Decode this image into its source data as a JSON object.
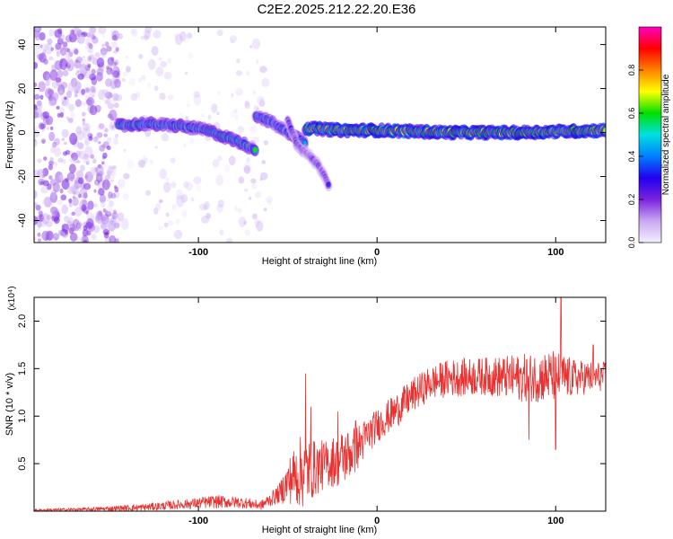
{
  "title": "C2E2.2025.212.22.20.E36",
  "chart_data": [
    {
      "type": "heatmap",
      "xlabel": "Height of straight line (km)",
      "ylabel": "Frequency (Hz)",
      "xlim": [
        -192,
        128
      ],
      "ylim": [
        -50,
        48
      ],
      "x_ticks": [
        -100,
        0,
        100
      ],
      "x_tick_labels": [
        "-100",
        "0",
        "100"
      ],
      "y_ticks": [
        -40,
        -20,
        0,
        20,
        40
      ],
      "y_tick_labels": [
        "-40",
        "-20",
        "0",
        "20",
        "40"
      ],
      "colorbar": {
        "label": "Normalized spectral amplitude",
        "range": [
          0,
          1
        ],
        "ticks": [
          0.0,
          0.2,
          0.4,
          0.6,
          0.8
        ],
        "tick_labels": [
          "0.0",
          "0.2",
          "0.4",
          "0.6",
          "0.8"
        ],
        "colormap": [
          "#f5f0ff",
          "#c9a8f2",
          "#7a22e0",
          "#2200ee",
          "#0080ff",
          "#00e0e0",
          "#00e000",
          "#ffff00",
          "#ff8000",
          "#ff0000",
          "#ff00c0"
        ]
      },
      "features": [
        {
          "name": "noise_region",
          "x_range": [
            -192,
            -145
          ],
          "freq_range": [
            -50,
            48
          ],
          "amplitude": 0.1
        },
        {
          "name": "sparse_noise",
          "x_range": [
            -145,
            -60
          ],
          "freq_range": [
            -50,
            48
          ],
          "amplitude": 0.05
        },
        {
          "name": "track_1",
          "x": [
            -145,
            -130,
            -110,
            -95,
            -85,
            -75,
            -68
          ],
          "freq": [
            3,
            4,
            3,
            1,
            -2,
            -5,
            -8
          ],
          "amplitude": 0.5
        },
        {
          "name": "track_2",
          "x": [
            -68,
            -60,
            -52,
            -45,
            -40
          ],
          "freq": [
            8,
            5,
            1,
            -2,
            -5
          ],
          "amplitude": 0.45
        },
        {
          "name": "branch",
          "x": [
            -50,
            -45,
            -40,
            -35,
            -32,
            -29,
            -27
          ],
          "freq": [
            6,
            -5,
            -9,
            -13,
            -16,
            -20,
            -24
          ],
          "amplitude": 0.25
        },
        {
          "name": "steady_line",
          "x": [
            -40,
            -20,
            0,
            40,
            80,
            128
          ],
          "freq": [
            2,
            1,
            1,
            0,
            0,
            1
          ],
          "amplitude": 0.85
        }
      ]
    },
    {
      "type": "line",
      "xlabel": "Height of straight line (km)",
      "ylabel": "SNR (10 * v/v)",
      "y_multiplier": "(x10⁴)",
      "xlim": [
        -192,
        128
      ],
      "ylim": [
        0,
        2.25
      ],
      "x_ticks": [
        -100,
        0,
        100
      ],
      "x_tick_labels": [
        "-100",
        "0",
        "100"
      ],
      "y_ticks": [
        0.5,
        1.0,
        1.5,
        2.0
      ],
      "y_tick_labels": [
        "0.5",
        "1.0",
        "1.5",
        "2.0"
      ],
      "color": "#e83232",
      "envelope": {
        "x": [
          -192,
          -160,
          -130,
          -110,
          -90,
          -75,
          -65,
          -55,
          -48,
          -42,
          -35,
          -28,
          -20,
          -12,
          -5,
          0,
          10,
          20,
          30,
          40,
          60,
          80,
          100,
          110,
          128
        ],
        "mean": [
          0.01,
          0.02,
          0.04,
          0.07,
          0.1,
          0.09,
          0.06,
          0.18,
          0.35,
          0.42,
          0.45,
          0.5,
          0.55,
          0.65,
          0.8,
          0.9,
          1.05,
          1.22,
          1.35,
          1.4,
          1.42,
          1.4,
          1.42,
          1.4,
          1.42
        ],
        "amplitude": [
          0.01,
          0.02,
          0.04,
          0.05,
          0.07,
          0.06,
          0.05,
          0.1,
          0.28,
          0.4,
          0.3,
          0.25,
          0.3,
          0.25,
          0.2,
          0.18,
          0.18,
          0.18,
          0.18,
          0.2,
          0.2,
          0.25,
          0.28,
          0.2,
          0.15
        ]
      },
      "peaks": [
        {
          "x": -40,
          "y": 1.45
        },
        {
          "x": -37,
          "y": 1.1
        },
        {
          "x": -22,
          "y": 1.05
        },
        {
          "x": -12,
          "y": 0.95
        },
        {
          "x": 78,
          "y": 1.55
        },
        {
          "x": 103,
          "y": 2.25
        },
        {
          "x": 100,
          "y": 0.65
        },
        {
          "x": 85,
          "y": 0.75
        },
        {
          "x": 121,
          "y": 1.75
        }
      ]
    }
  ]
}
